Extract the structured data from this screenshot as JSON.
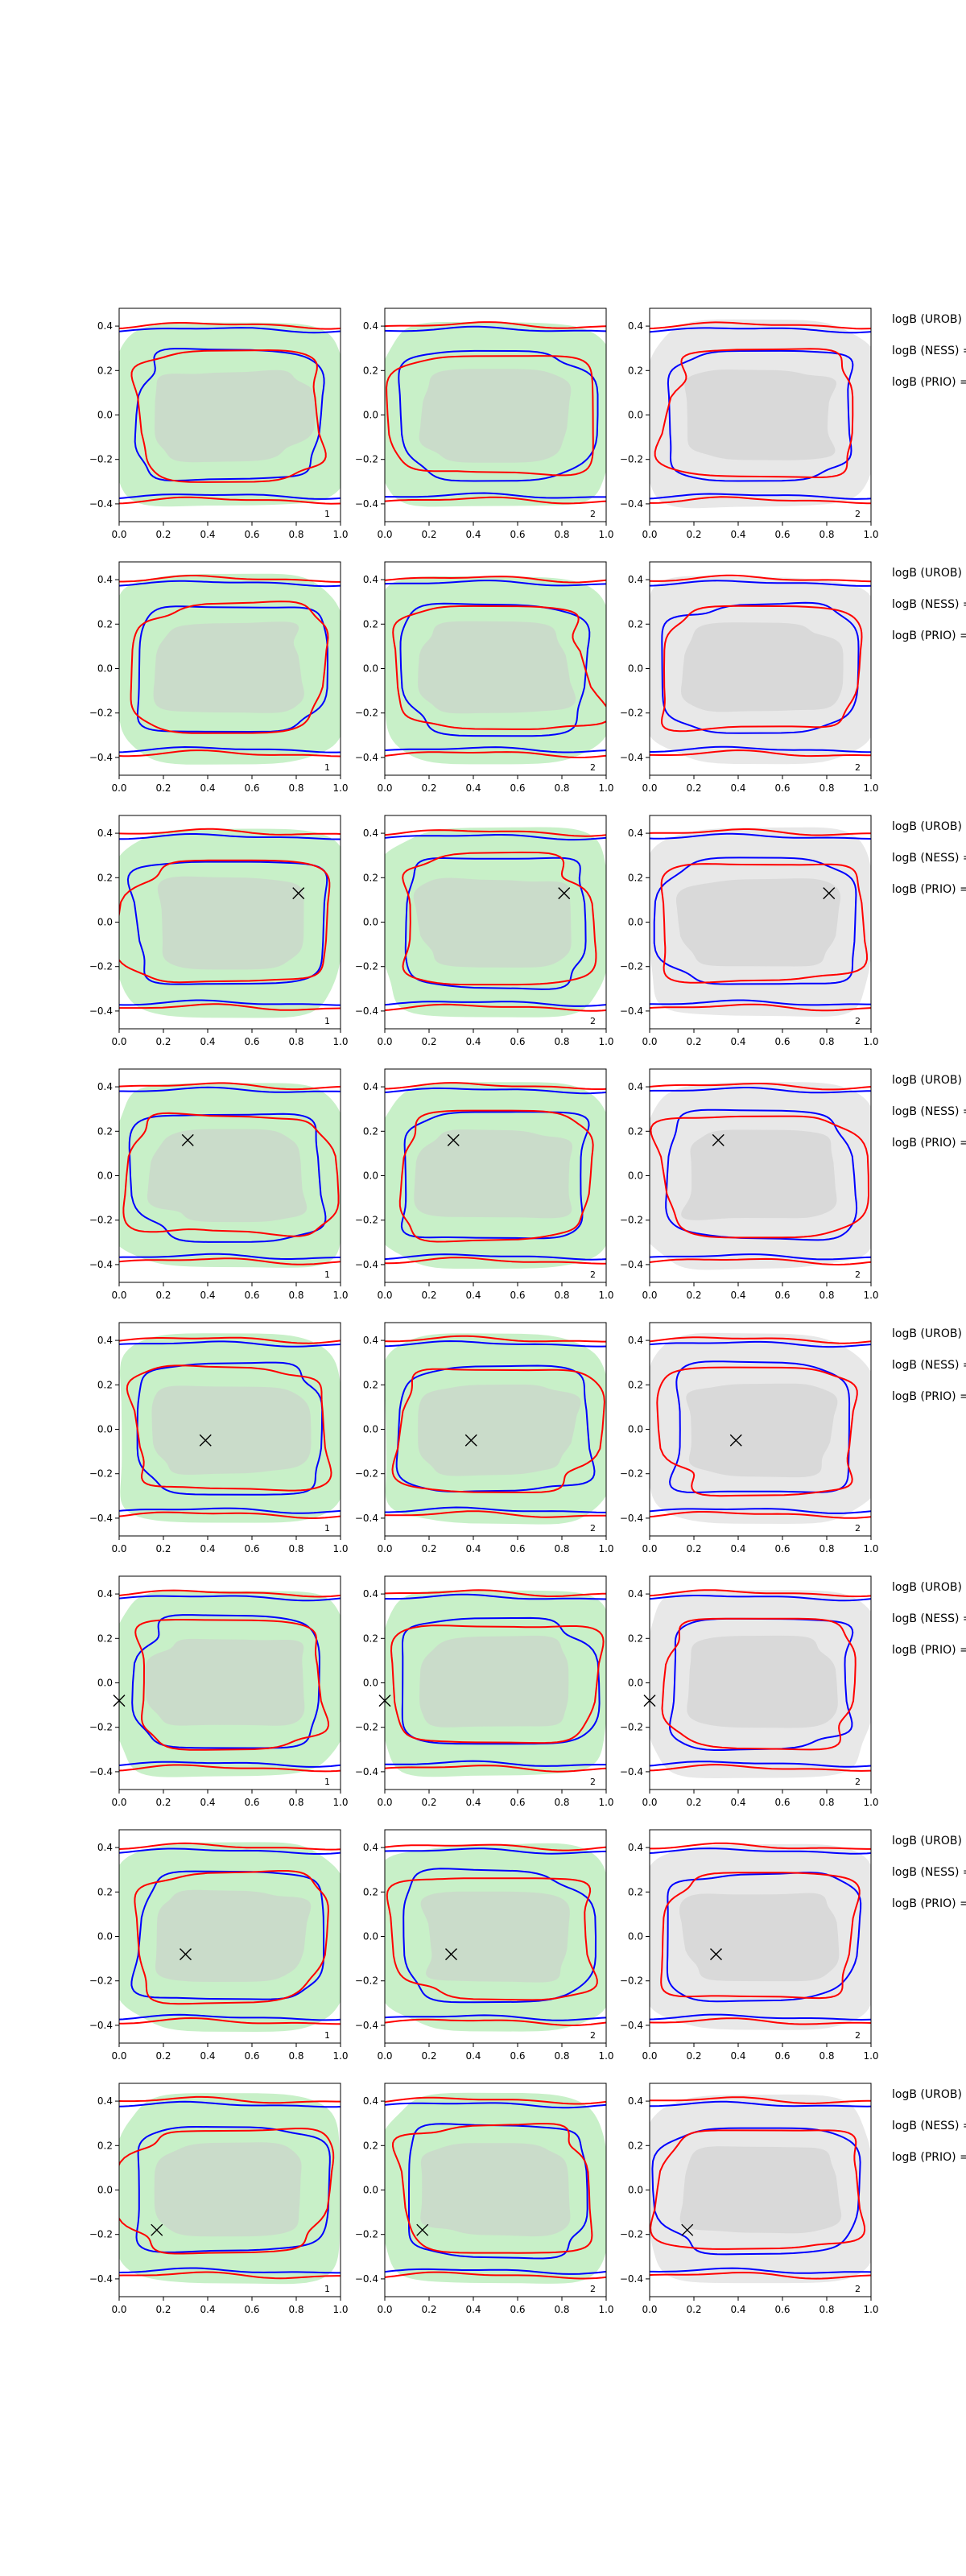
{
  "chart_data": {
    "type": "contour",
    "rows": 8,
    "cols": 3,
    "xlim": [
      0.0,
      1.0
    ],
    "ylim": [
      -0.48,
      0.48
    ],
    "xticks": [
      "0.0",
      "0.2",
      "0.4",
      "0.6",
      "0.8",
      "1.0"
    ],
    "yticks": [
      "0.4",
      "0.2",
      "0.0",
      "−0.2",
      "−0.4"
    ],
    "row_labels": [
      "logB (UROB) =",
      "logB (NESS) =",
      "logB (PRIO) ="
    ],
    "panel_numbers": [
      "1",
      "2",
      "2"
    ],
    "column_background": [
      "green",
      "green",
      "gray"
    ],
    "series_colors": {
      "contour_a": "#0000ff",
      "contour_b": "#ff0000"
    },
    "fill_colors": {
      "green_outer": "#c8f0c8",
      "gray_outer": "#e8e8e8",
      "inner": "#cccccc"
    },
    "markers": [
      null,
      null,
      {
        "x": 0.81,
        "y": 0.13
      },
      {
        "x": 0.31,
        "y": 0.16
      },
      {
        "x": 0.39,
        "y": -0.05
      },
      {
        "x": 0.0,
        "y": -0.08
      },
      {
        "x": 0.3,
        "y": -0.08
      },
      {
        "x": 0.17,
        "y": -0.18
      }
    ]
  }
}
